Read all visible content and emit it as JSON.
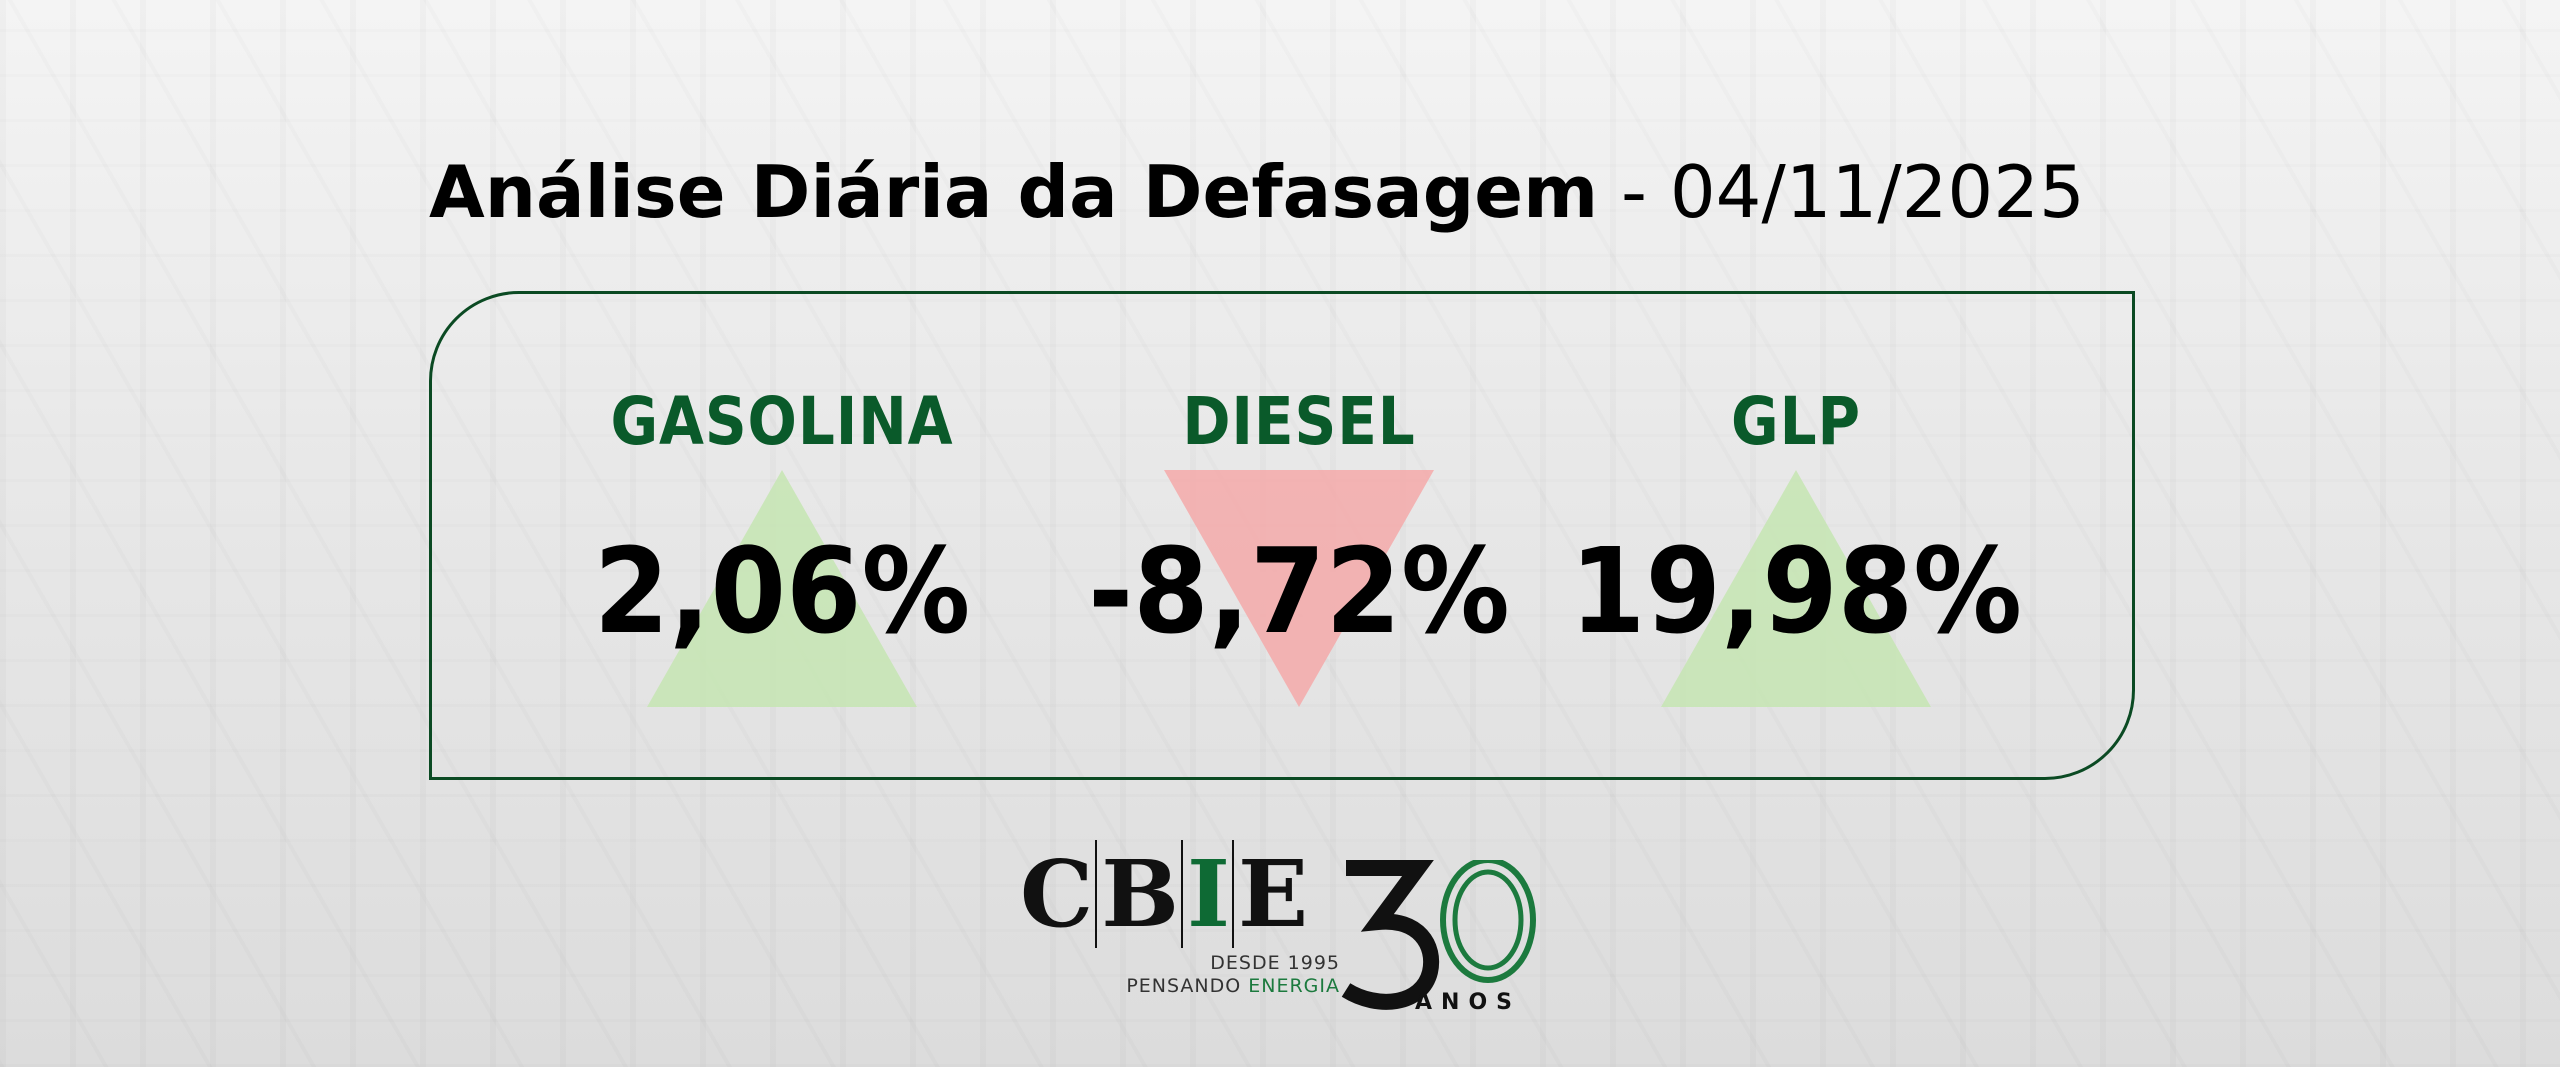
{
  "title": {
    "main": "Análise Diária da Defasagem",
    "separator": " - ",
    "date": "04/11/2025"
  },
  "items": [
    {
      "label": "GASOLINA",
      "value": "2,06%",
      "direction": "up",
      "arrow_color": "#c6e6b3"
    },
    {
      "label": "DIESEL",
      "value": "-8,72%",
      "direction": "down",
      "arrow_color": "#f5aaaa"
    },
    {
      "label": "GLP",
      "value": "19,98%",
      "direction": "up",
      "arrow_color": "#c6e6b3"
    }
  ],
  "logo": {
    "c": "C",
    "b": "B",
    "i": "I",
    "e": "E",
    "since": "DESDE 1995",
    "tagline_a": "PENSANDO ",
    "tagline_b": "ENERGIA",
    "years": "30",
    "anos": "ANOS"
  },
  "colors": {
    "brand_green": "#0a5a2a",
    "border": "#0b4a23"
  }
}
